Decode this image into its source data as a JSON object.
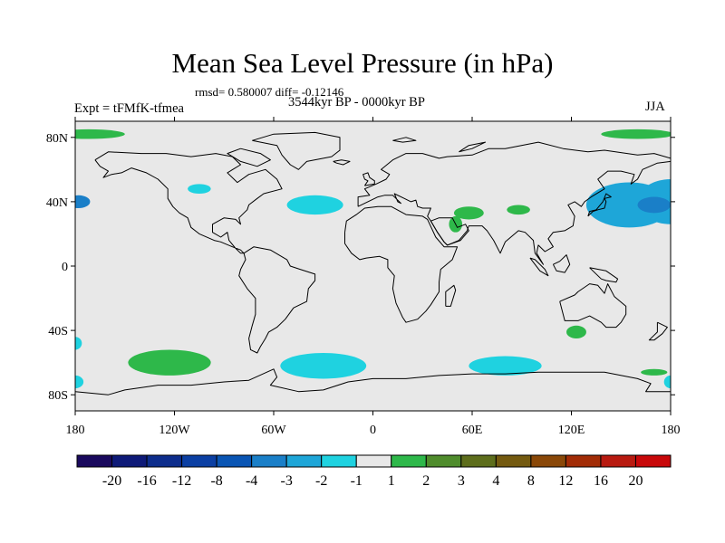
{
  "header": {
    "title": "Mean Sea Level Pressure (in hPa)",
    "stats": "rmsd= 0.580007  diff= -0.12146",
    "period": "3544kyr BP - 0000kyr BP",
    "experiment": "Expt = tFMfK-tfmea",
    "season": "JJA"
  },
  "colors": {
    "land_outline": "#000000",
    "background": "#e8e8e8",
    "frame": "#000000"
  },
  "chart_data": {
    "type": "heatmap",
    "title": "Mean Sea Level Pressure (in hPa)",
    "subtitle": "3544kyr BP - 0000kyr BP",
    "field": "JJA mean sea level pressure difference (hPa)",
    "x_axis": {
      "range": [
        -180,
        180
      ],
      "ticks": [
        -180,
        -120,
        -60,
        0,
        60,
        120,
        180
      ],
      "tick_labels": [
        "180",
        "120W",
        "60W",
        "0",
        "60E",
        "120E",
        "180"
      ]
    },
    "y_axis": {
      "range": [
        -90,
        90
      ],
      "ticks": [
        80,
        40,
        0,
        -40,
        -80
      ],
      "tick_labels": [
        "80N",
        "40N",
        "0",
        "40S",
        "80S"
      ]
    },
    "colorbar": {
      "labels": [
        "-20",
        "-16",
        "-12",
        "-8",
        "-4",
        "-3",
        "-2",
        "-1",
        "1",
        "2",
        "3",
        "4",
        "8",
        "12",
        "16",
        "20"
      ],
      "colors": [
        "#1a0a5e",
        "#0e1a78",
        "#0d2d8c",
        "#0b3fa3",
        "#0a55b4",
        "#1a7fc8",
        "#1ea6d8",
        "#1fd2e0",
        "#e8e8e8",
        "#2eb84a",
        "#4f8c2c",
        "#5e6e1c",
        "#745a10",
        "#8a4808",
        "#a22c06",
        "#b81a10",
        "#c8080a"
      ]
    },
    "anomalies": [
      {
        "name": "north-pacific-low",
        "lon": 180,
        "lat": 40,
        "lon_radius": 20,
        "lat_radius": 14,
        "class": "-2"
      },
      {
        "name": "north-pacific-low-core",
        "lon": -178,
        "lat": 40,
        "lon_radius": 7,
        "lat_radius": 4,
        "class": "-3"
      },
      {
        "name": "west-pacific-low",
        "lon": 155,
        "lat": 38,
        "lon_radius": 26,
        "lat_radius": 14,
        "class": "-2"
      },
      {
        "name": "west-pacific-low-core",
        "lon": 170,
        "lat": 38,
        "lon_radius": 10,
        "lat_radius": 5,
        "class": "-3"
      },
      {
        "name": "central-atlantic-low",
        "lon": -35,
        "lat": 38,
        "lon_radius": 17,
        "lat_radius": 6,
        "class": "-1"
      },
      {
        "name": "north-america-low",
        "lon": -105,
        "lat": 48,
        "lon_radius": 7,
        "lat_radius": 3,
        "class": "-1"
      },
      {
        "name": "arctic-high-west",
        "lon": -172,
        "lat": 82,
        "lon_radius": 22,
        "lat_radius": 3,
        "class": "1"
      },
      {
        "name": "arctic-high-east",
        "lon": 160,
        "lat": 82,
        "lon_radius": 22,
        "lat_radius": 3,
        "class": "1"
      },
      {
        "name": "middle-east-high",
        "lon": 58,
        "lat": 33,
        "lon_radius": 9,
        "lat_radius": 4,
        "class": "1"
      },
      {
        "name": "arabia-high",
        "lon": 50,
        "lat": 26,
        "lon_radius": 4,
        "lat_radius": 5,
        "class": "1"
      },
      {
        "name": "himalaya-high",
        "lon": 88,
        "lat": 35,
        "lon_radius": 7,
        "lat_radius": 3,
        "class": "1"
      },
      {
        "name": "south-pacific-high",
        "lon": -123,
        "lat": -60,
        "lon_radius": 25,
        "lat_radius": 8,
        "class": "1"
      },
      {
        "name": "australia-high",
        "lon": 123,
        "lat": -41,
        "lon_radius": 6,
        "lat_radius": 4,
        "class": "1"
      },
      {
        "name": "south-indian-high",
        "lon": 170,
        "lat": -66,
        "lon_radius": 8,
        "lat_radius": 2,
        "class": "1"
      },
      {
        "name": "south-atlantic-low",
        "lon": -30,
        "lat": -62,
        "lon_radius": 26,
        "lat_radius": 8,
        "class": "-1"
      },
      {
        "name": "south-indian-low",
        "lon": 80,
        "lat": -62,
        "lon_radius": 22,
        "lat_radius": 6,
        "class": "-1"
      },
      {
        "name": "south-pacific-edge-low",
        "lon": -180,
        "lat": -48,
        "lon_radius": 4,
        "lat_radius": 4,
        "class": "-1"
      },
      {
        "name": "south-pacific-edge-low2",
        "lon": -180,
        "lat": -72,
        "lon_radius": 5,
        "lat_radius": 4,
        "class": "-1"
      },
      {
        "name": "south-edge-low-east",
        "lon": 180,
        "lat": -72,
        "lon_radius": 4,
        "lat_radius": 4,
        "class": "-1"
      }
    ]
  }
}
